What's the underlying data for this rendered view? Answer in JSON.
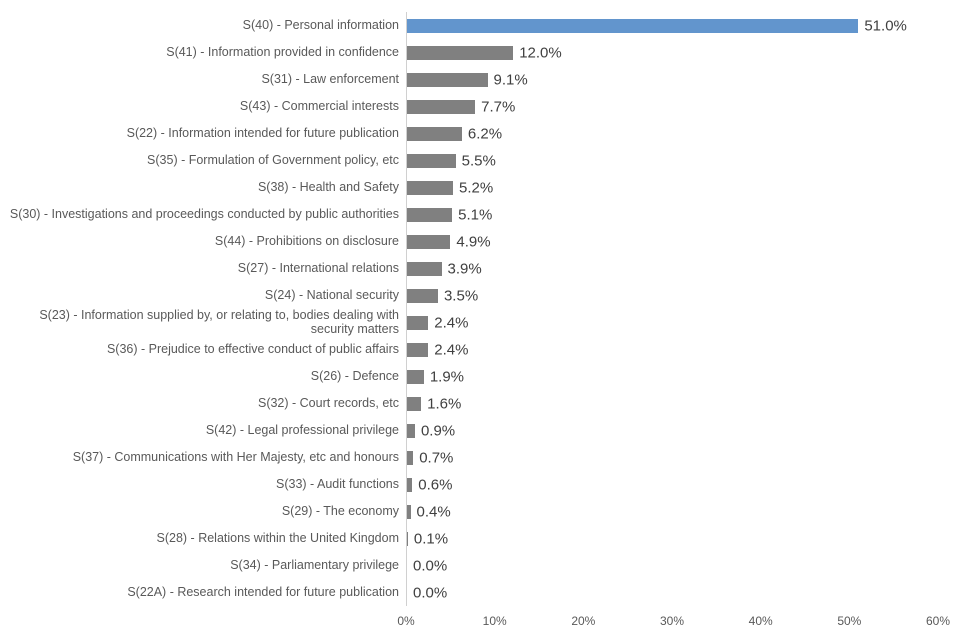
{
  "chart_data": {
    "type": "bar",
    "orientation": "horizontal",
    "categories": [
      "S(40) - Personal information",
      "S(41) - Information provided in confidence",
      "S(31) - Law enforcement",
      "S(43) - Commercial interests",
      "S(22) - Information intended for future publication",
      "S(35) - Formulation of Government policy, etc",
      "S(38) - Health and Safety",
      "S(30) - Investigations and proceedings conducted by public authorities",
      "S(44) - Prohibitions on disclosure",
      "S(27) - International relations",
      "S(24) - National security",
      "S(23) - Information supplied by, or relating to, bodies dealing with security matters",
      "S(36) - Prejudice to effective conduct of public affairs",
      "S(26) - Defence",
      "S(32) - Court records, etc",
      "S(42) - Legal professional privilege",
      "S(37) - Communications with Her Majesty, etc and honours",
      "S(33) - Audit functions",
      "S(29) - The economy",
      "S(28) - Relations within the United Kingdom",
      "S(34) - Parliamentary privilege",
      "S(22A) - Research intended for future publication"
    ],
    "values": [
      51.0,
      12.0,
      9.1,
      7.7,
      6.2,
      5.5,
      5.2,
      5.1,
      4.9,
      3.9,
      3.5,
      2.4,
      2.4,
      1.9,
      1.6,
      0.9,
      0.7,
      0.6,
      0.4,
      0.1,
      0.0,
      0.0
    ],
    "value_labels": [
      "51.0%",
      "12.0%",
      "9.1%",
      "7.7%",
      "6.2%",
      "5.5%",
      "5.2%",
      "5.1%",
      "4.9%",
      "3.9%",
      "3.5%",
      "2.4%",
      "2.4%",
      "1.9%",
      "1.6%",
      "0.9%",
      "0.7%",
      "0.6%",
      "0.4%",
      "0.1%",
      "0.0%",
      "0.0%"
    ],
    "xlabel": "",
    "ylabel": "",
    "xlim": [
      0,
      60
    ],
    "x_ticks": [
      "0%",
      "10%",
      "20%",
      "30%",
      "40%",
      "50%",
      "60%"
    ],
    "highlight_index": 0,
    "colors": {
      "highlight": "#6295cd",
      "default": "#808080",
      "label_text": "#595959",
      "value_text": "#404040",
      "axis_line": "#d0d0d0"
    },
    "legend": "none",
    "grid": "off"
  }
}
